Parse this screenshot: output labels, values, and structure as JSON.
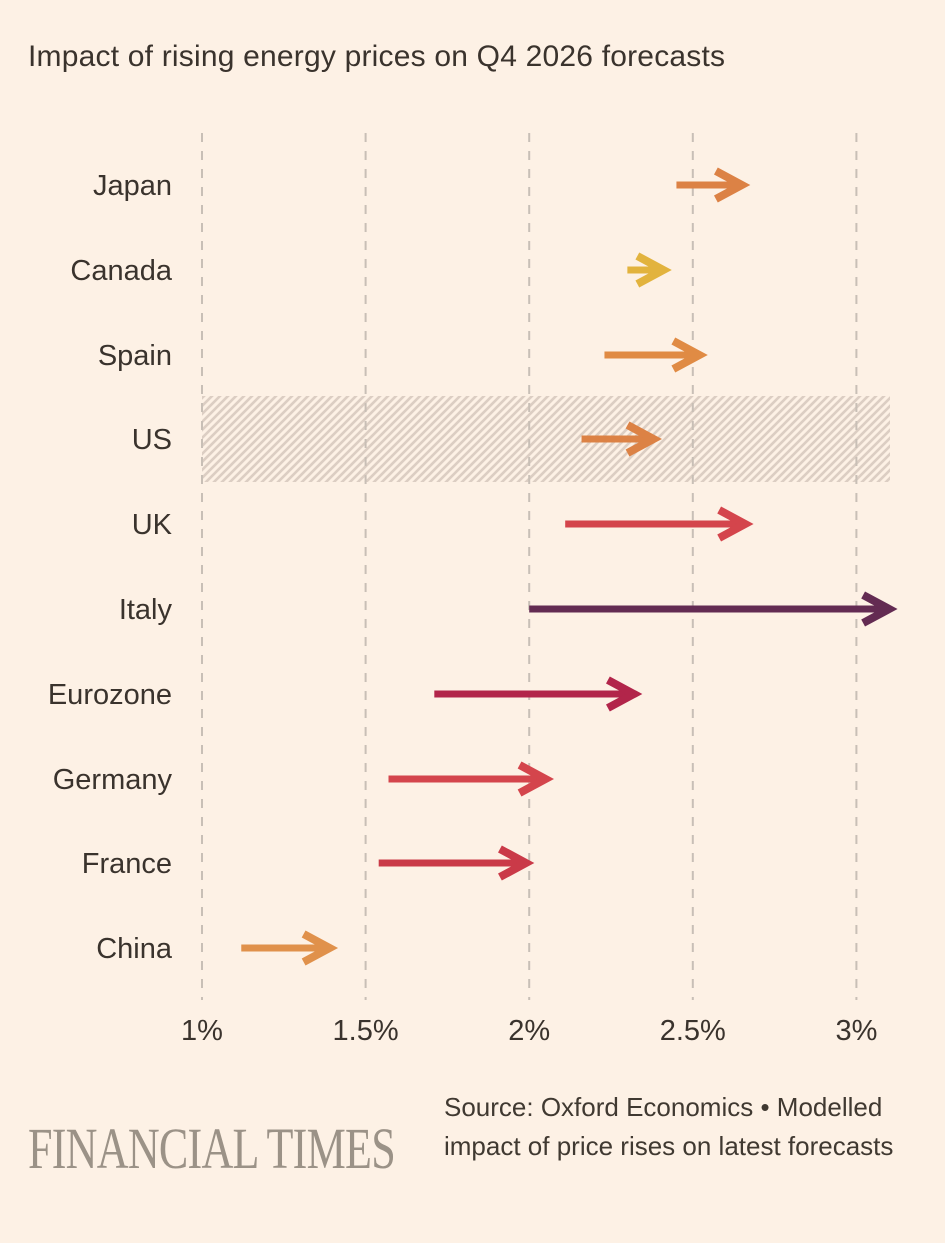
{
  "title": "Impact of rising energy prices on Q4 2026 forecasts",
  "footer": {
    "logo": "FINANCIAL TIMES",
    "source": "Source: Oxford Economics • Modelled impact of price rises on latest forecasts"
  },
  "colors": {
    "background": "#FDF1E5",
    "text": "#3A332D",
    "source_text": "#403931",
    "logo": "#9B9287",
    "gridline": "#C8BFB6",
    "hatch": "#DCCEC3"
  },
  "chart_data": {
    "type": "arrow-range",
    "title": "Impact of rising energy prices on Q4 2026 forecasts",
    "xlabel": "",
    "ylabel": "",
    "unit": "%",
    "xlim": [
      1,
      3
    ],
    "tick_values": [
      1,
      1.5,
      2,
      2.5,
      3
    ],
    "tick_labels": [
      "1%",
      "1.5%",
      "2%",
      "2.5%",
      "3%"
    ],
    "grid": "dashed-vertical",
    "legend": "none",
    "highlighted_category": "US",
    "highlight_style": "hatched-band",
    "series": [
      {
        "category": "Japan",
        "from": 2.45,
        "to": 2.65,
        "color": "#DC8245"
      },
      {
        "category": "Canada",
        "from": 2.3,
        "to": 2.41,
        "color": "#E2B33E"
      },
      {
        "category": "Spain",
        "from": 2.23,
        "to": 2.52,
        "color": "#E08B44"
      },
      {
        "category": "US",
        "from": 2.16,
        "to": 2.38,
        "color": "#DC8245",
        "highlighted": true
      },
      {
        "category": "UK",
        "from": 2.11,
        "to": 2.66,
        "color": "#D4454C"
      },
      {
        "category": "Italy",
        "from": 2.0,
        "to": 3.1,
        "color": "#632B52"
      },
      {
        "category": "Eurozone",
        "from": 1.71,
        "to": 2.32,
        "color": "#B2254A"
      },
      {
        "category": "Germany",
        "from": 1.57,
        "to": 2.05,
        "color": "#D4454C"
      },
      {
        "category": "France",
        "from": 1.54,
        "to": 1.99,
        "color": "#CA3A48"
      },
      {
        "category": "China",
        "from": 1.12,
        "to": 1.39,
        "color": "#E0914B"
      }
    ]
  }
}
